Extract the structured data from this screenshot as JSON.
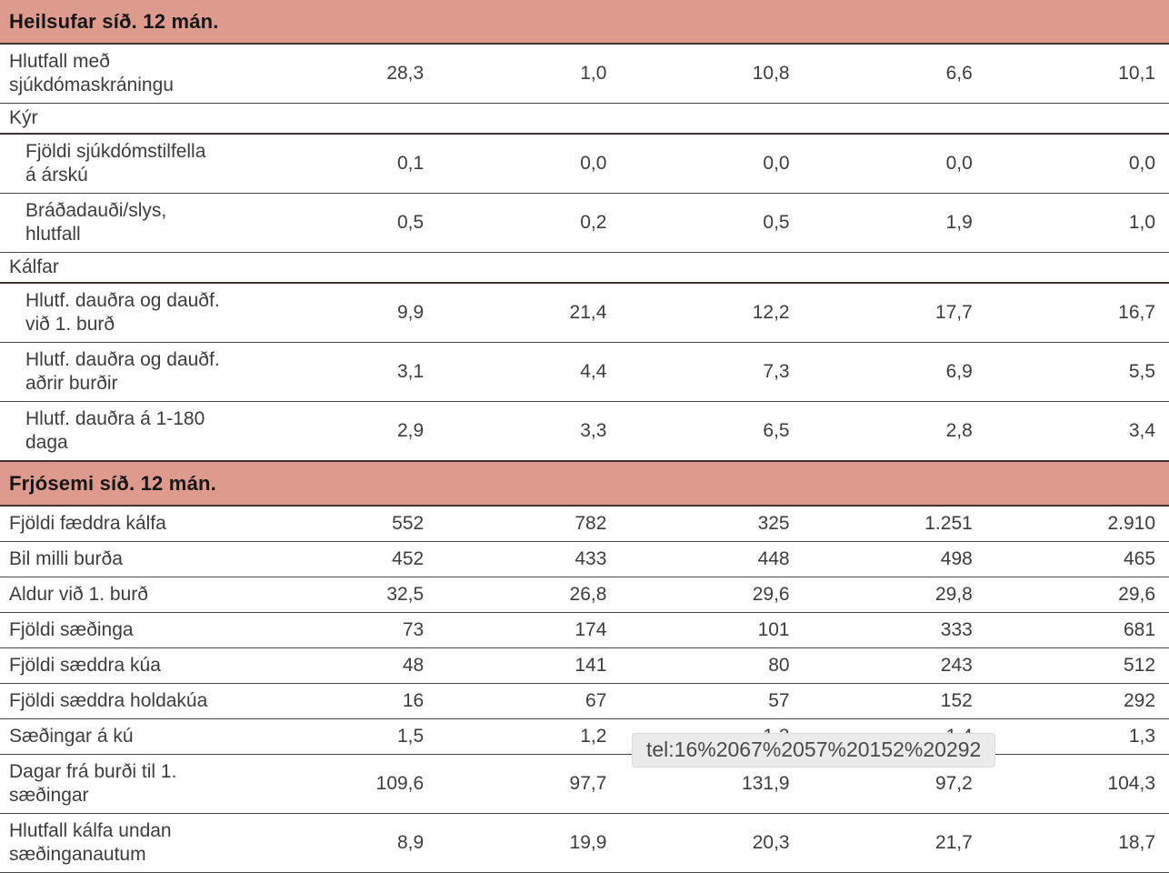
{
  "colors": {
    "section_header_bg": "#df9a8e",
    "heavy_border": "#3f3330",
    "row_border": "#474747",
    "text": "#3d3d3d",
    "tooltip_bg": "#ebebeb",
    "tooltip_text": "#4a4a4a"
  },
  "tooltip": {
    "text": "tel:16%2067%2057%20152%20292"
  },
  "sections": [
    {
      "title": "Heilsufar síð. 12 mán.",
      "rows": [
        {
          "label": "Hlutfall með\nsjúkdómaskráningu",
          "type": "data",
          "indent": false,
          "values": [
            "28,3",
            "1,0",
            "10,8",
            "6,6",
            "10,1"
          ]
        },
        {
          "label": "Kýr",
          "type": "group",
          "indent": false,
          "values": [
            "",
            "",
            "",
            "",
            ""
          ]
        },
        {
          "label": "Fjöldi sjúkdómstilfella\ná árskú",
          "type": "data",
          "indent": true,
          "values": [
            "0,1",
            "0,0",
            "0,0",
            "0,0",
            "0,0"
          ]
        },
        {
          "label": "Bráðadauði/slys,\nhlutfall",
          "type": "data",
          "indent": true,
          "values": [
            "0,5",
            "0,2",
            "0,5",
            "1,9",
            "1,0"
          ]
        },
        {
          "label": "Kálfar",
          "type": "group",
          "indent": false,
          "values": [
            "",
            "",
            "",
            "",
            ""
          ]
        },
        {
          "label": "Hlutf. dauðra og dauðf.\nvið 1. burð",
          "type": "data",
          "indent": true,
          "values": [
            "9,9",
            "21,4",
            "12,2",
            "17,7",
            "16,7"
          ]
        },
        {
          "label": "Hlutf. dauðra og dauðf.\naðrir burðir",
          "type": "data",
          "indent": true,
          "values": [
            "3,1",
            "4,4",
            "7,3",
            "6,9",
            "5,5"
          ]
        },
        {
          "label": "Hlutf. dauðra á 1-180\ndaga",
          "type": "data",
          "indent": true,
          "values": [
            "2,9",
            "3,3",
            "6,5",
            "2,8",
            "3,4"
          ]
        }
      ]
    },
    {
      "title": "Frjósemi síð. 12 mán.",
      "rows": [
        {
          "label": "Fjöldi fæddra kálfa",
          "type": "data",
          "indent": false,
          "values": [
            "552",
            "782",
            "325",
            "1.251",
            "2.910"
          ]
        },
        {
          "label": "Bil milli burða",
          "type": "data",
          "indent": false,
          "values": [
            "452",
            "433",
            "448",
            "498",
            "465"
          ]
        },
        {
          "label": "Aldur við 1. burð",
          "type": "data",
          "indent": false,
          "values": [
            "32,5",
            "26,8",
            "29,6",
            "29,8",
            "29,6"
          ]
        },
        {
          "label": "Fjöldi sæðinga",
          "type": "data",
          "indent": false,
          "values": [
            "73",
            "174",
            "101",
            "333",
            "681"
          ]
        },
        {
          "label": "Fjöldi sæddra kúa",
          "type": "data",
          "indent": false,
          "values": [
            "48",
            "141",
            "80",
            "243",
            "512"
          ]
        },
        {
          "label": "Fjöldi sæddra holdakúa",
          "type": "data",
          "indent": false,
          "values": [
            "16",
            "67",
            "57",
            "152",
            "292"
          ]
        },
        {
          "label": "Sæðingar á kú",
          "type": "data",
          "indent": false,
          "values": [
            "1,5",
            "1,2",
            "1,3",
            "1,4",
            "1,3"
          ]
        },
        {
          "label": "Dagar frá burði til 1.\nsæðingar",
          "type": "data",
          "indent": false,
          "values": [
            "109,6",
            "97,7",
            "131,9",
            "97,2",
            "104,3"
          ]
        },
        {
          "label": "Hlutfall kálfa undan\nsæðinganautum",
          "type": "data",
          "indent": false,
          "values": [
            "8,9",
            "19,9",
            "20,3",
            "21,7",
            "18,7"
          ]
        }
      ]
    }
  ]
}
